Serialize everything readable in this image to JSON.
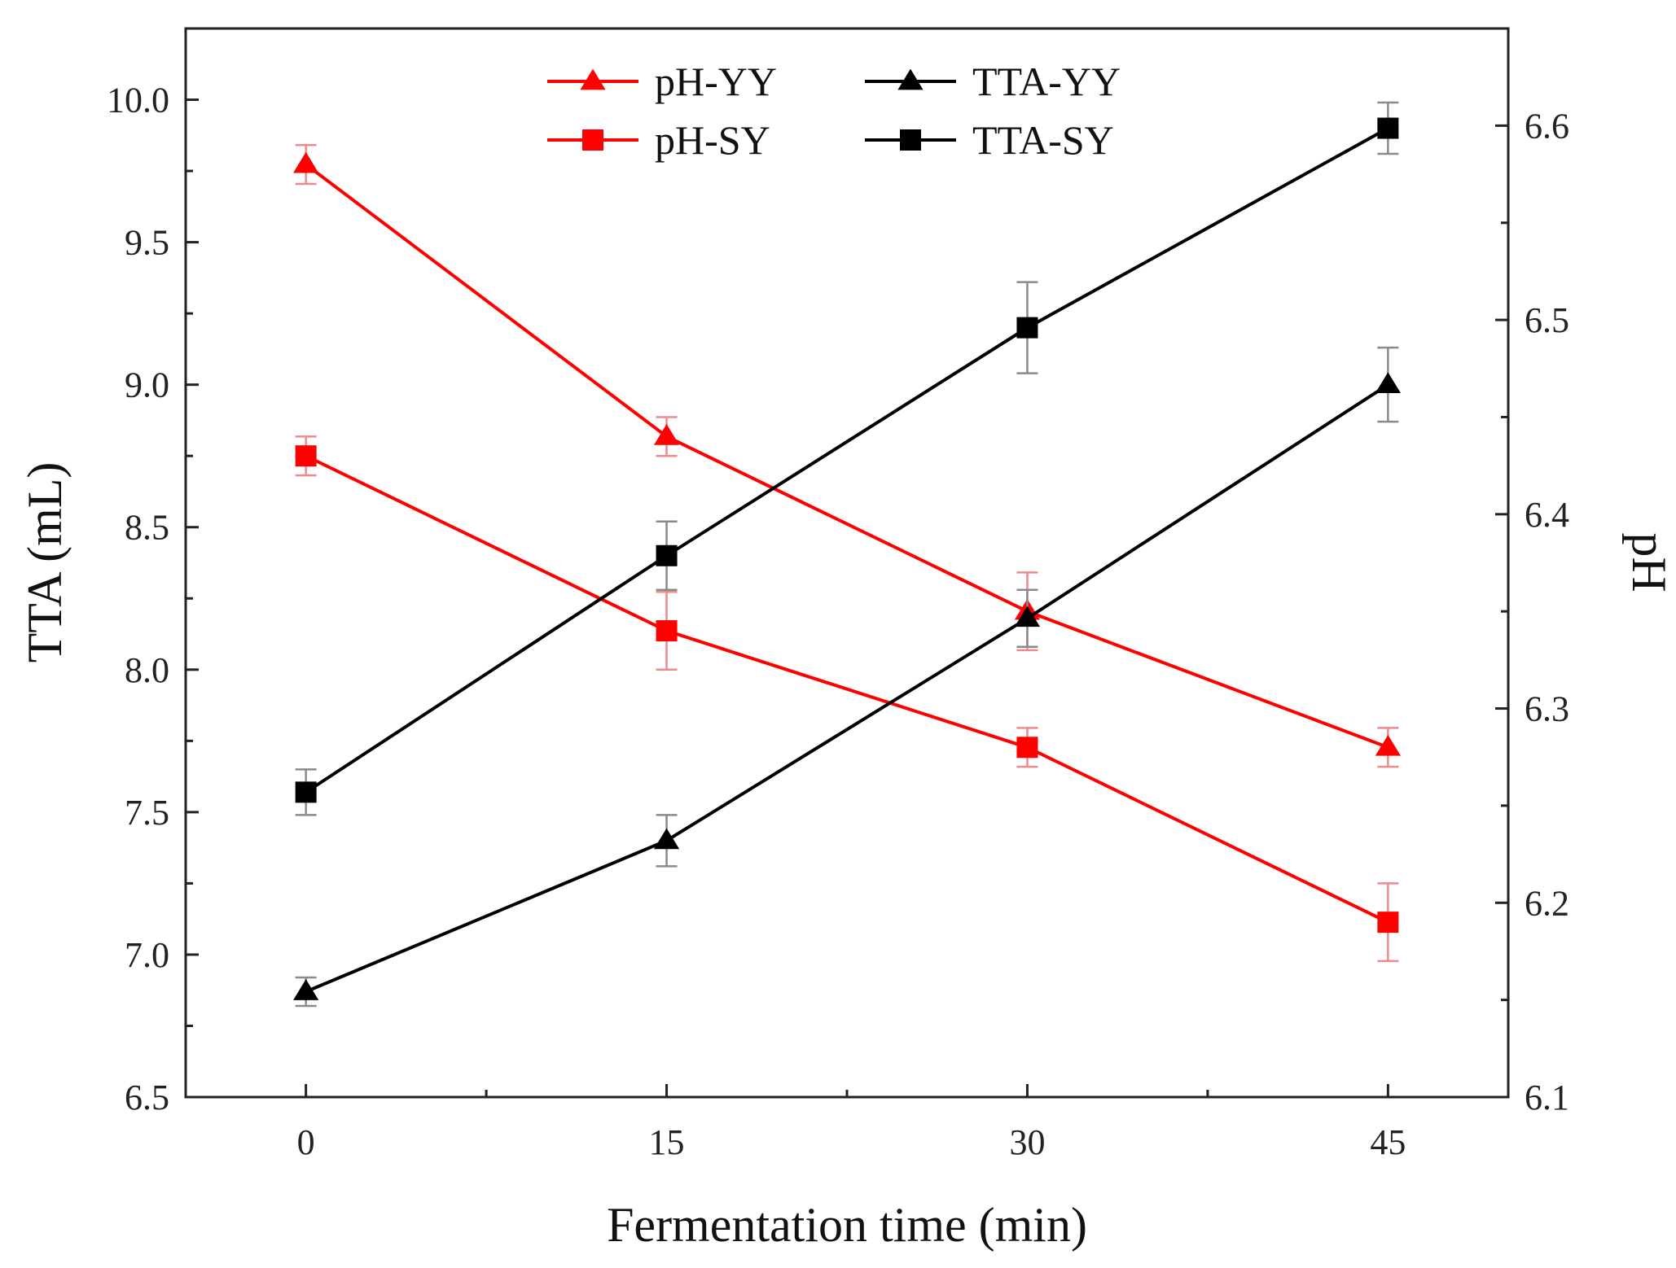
{
  "chart_data": {
    "type": "line",
    "xlabel": "Fermentation time (min)",
    "ylabel_left": "TTA (mL)",
    "ylabel_right": "pH",
    "x": [
      0,
      15,
      30,
      45
    ],
    "x_ticks": [
      "0",
      "15",
      "30",
      "45"
    ],
    "xlim": [
      -5,
      50
    ],
    "ylim_left": [
      6.5,
      10.25
    ],
    "ylim_right": [
      6.1,
      6.65
    ],
    "y_ticks_left": [
      "6.5",
      "7.0",
      "7.5",
      "8.0",
      "8.5",
      "9.0",
      "9.5",
      "10.0"
    ],
    "y_ticks_right": [
      "6.1",
      "6.2",
      "6.3",
      "6.4",
      "6.5",
      "6.6"
    ],
    "grid": false,
    "legend_position": "top",
    "series": [
      {
        "name": "pH-YY",
        "axis": "right",
        "marker": "triangle",
        "color": "#ff0000",
        "values": [
          6.58,
          6.44,
          6.35,
          6.28
        ],
        "errors": [
          0.01,
          0.01,
          0.02,
          0.01
        ]
      },
      {
        "name": "pH-SY",
        "axis": "right",
        "marker": "square",
        "color": "#ff0000",
        "values": [
          6.43,
          6.34,
          6.28,
          6.19
        ],
        "errors": [
          0.01,
          0.02,
          0.01,
          0.02
        ]
      },
      {
        "name": "TTA-YY",
        "axis": "left",
        "marker": "triangle",
        "color": "#000000",
        "values": [
          6.87,
          7.4,
          8.18,
          9.0
        ],
        "errors": [
          0.05,
          0.09,
          0.1,
          0.13
        ]
      },
      {
        "name": "TTA-SY",
        "axis": "left",
        "marker": "square",
        "color": "#000000",
        "values": [
          7.57,
          8.4,
          9.2,
          9.9
        ],
        "errors": [
          0.08,
          0.12,
          0.16,
          0.09
        ]
      }
    ]
  }
}
